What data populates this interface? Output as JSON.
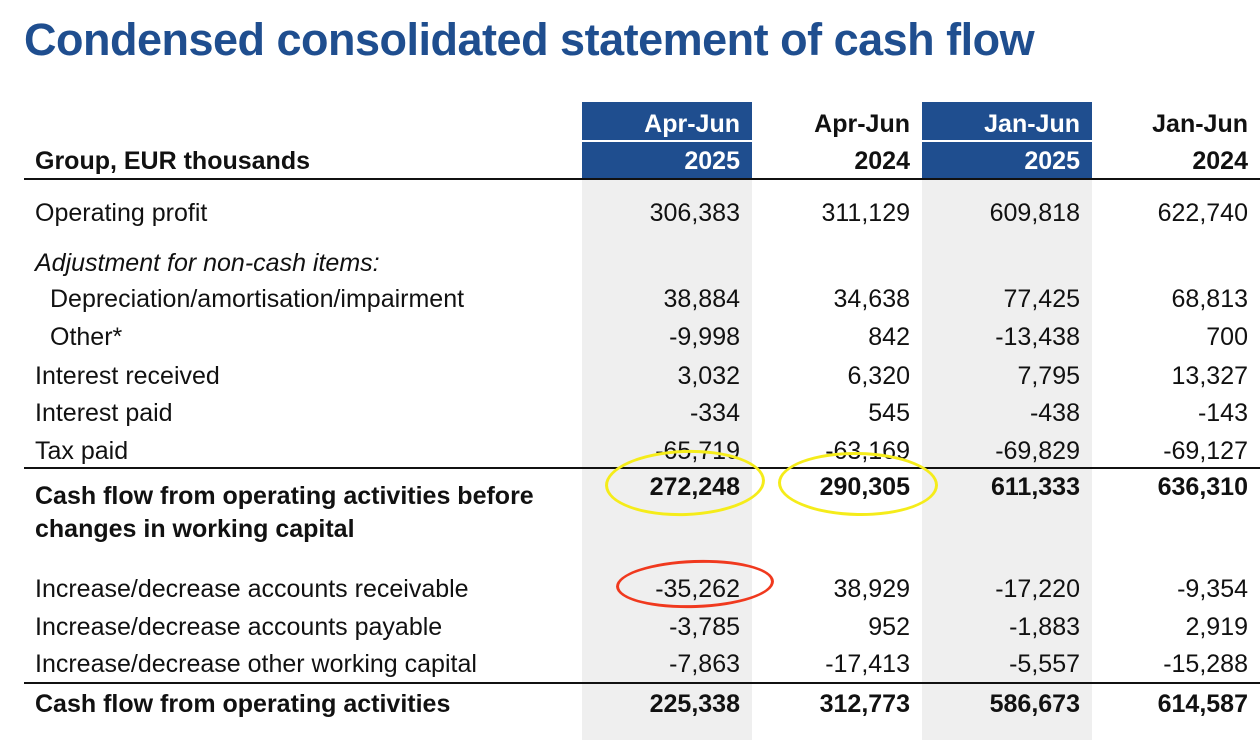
{
  "title": "Condensed consolidated statement of cash flow",
  "group_label": "Group, EUR thousands",
  "columns": [
    {
      "line1": "Apr-Jun",
      "line2": "2025",
      "highlighted": true
    },
    {
      "line1": "Apr-Jun",
      "line2": "2024",
      "highlighted": false
    },
    {
      "line1": "Jan-Jun",
      "line2": "2025",
      "highlighted": true
    },
    {
      "line1": "Jan-Jun",
      "line2": "2024",
      "highlighted": false
    }
  ],
  "rows": [
    {
      "label": "Operating profit",
      "values": [
        "306,383",
        "311,129",
        "609,818",
        "622,740"
      ]
    },
    {
      "label": "Adjustment for non-cash items:",
      "values": []
    },
    {
      "label": "Depreciation/amortisation/impairment",
      "values": [
        "38,884",
        "34,638",
        "77,425",
        "68,813"
      ]
    },
    {
      "label": "Other*",
      "values": [
        "-9,998",
        "842",
        "-13,438",
        "700"
      ]
    },
    {
      "label": "Interest received",
      "values": [
        "3,032",
        "6,320",
        "7,795",
        "13,327"
      ]
    },
    {
      "label": "Interest paid",
      "values": [
        "-334",
        "545",
        "-438",
        "-143"
      ]
    },
    {
      "label": "Tax paid",
      "values": [
        "-65,719",
        "-63,169",
        "-69,829",
        "-69,127"
      ]
    },
    {
      "label": "Cash flow from operating activities before",
      "label2": "changes in working capital",
      "values": [
        "272,248",
        "290,305",
        "611,333",
        "636,310"
      ]
    },
    {
      "label": "Increase/decrease accounts receivable",
      "values": [
        "-35,262",
        "38,929",
        "-17,220",
        "-9,354"
      ]
    },
    {
      "label": "Increase/decrease accounts payable",
      "values": [
        "-3,785",
        "952",
        "-1,883",
        "2,919"
      ]
    },
    {
      "label": "Increase/decrease other working capital",
      "values": [
        "-7,863",
        "-17,413",
        "-5,557",
        "-15,288"
      ]
    },
    {
      "label": "Cash flow from operating activities",
      "values": [
        "225,338",
        "312,773",
        "586,673",
        "614,587"
      ]
    }
  ],
  "colors": {
    "title": "#1f4e8f",
    "header_fill": "#1f4e8f",
    "column_shade": "#efefef",
    "yellow_annotation": "#f5ec1a",
    "red_annotation": "#f0391e"
  }
}
